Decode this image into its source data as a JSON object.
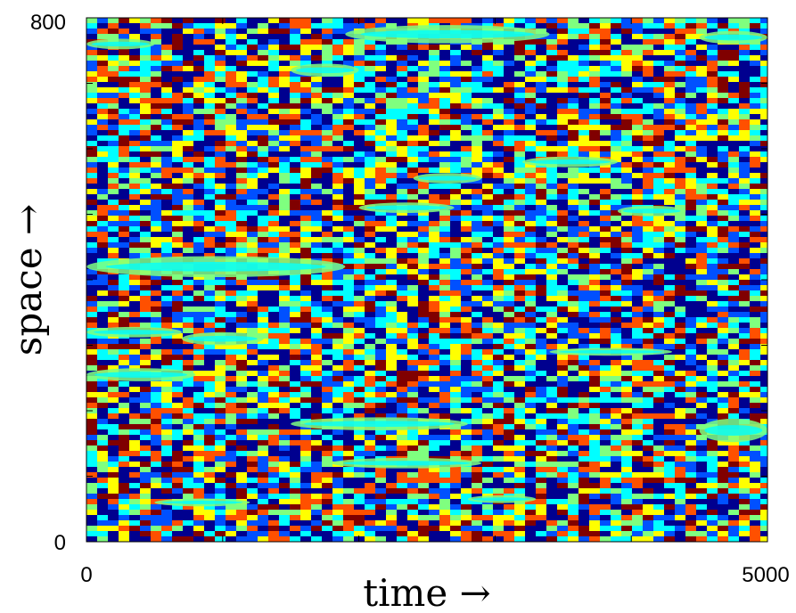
{
  "chart_data": {
    "type": "heatmap",
    "title": "",
    "xlabel": "time  →",
    "ylabel": "space  →",
    "xlim": [
      0,
      5000
    ],
    "ylim": [
      0,
      800
    ],
    "x_tick_labels": [
      "0",
      "5000"
    ],
    "y_tick_labels": [
      "0",
      "800"
    ],
    "x_tick_values": [
      0,
      1000,
      2000,
      3000,
      4000,
      5000
    ],
    "y_tick_values": [
      0,
      100,
      200,
      300,
      400,
      500,
      600,
      700,
      800
    ],
    "colormap": [
      "#00008f",
      "#0050ff",
      "#00ffff",
      "#7fff7f",
      "#ffff00",
      "#ff5000",
      "#800000"
    ],
    "background_color": "#7fd8c0",
    "grid": false
  }
}
